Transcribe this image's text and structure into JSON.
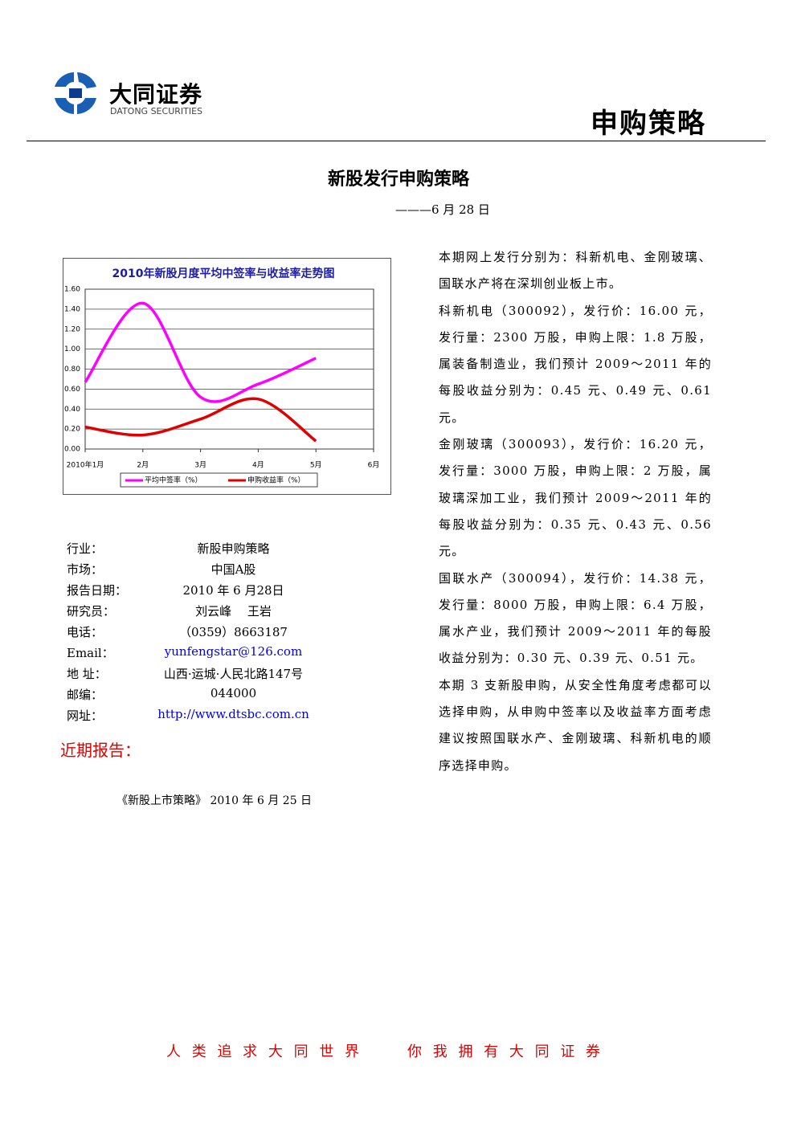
{
  "header": {
    "company": "大同证券",
    "company_en": "DATONG SECURITIES",
    "report_type": "申购策略"
  },
  "title": "新股发行申购策略",
  "date": "———6 月 28 日",
  "chart_data": {
    "type": "line",
    "title": "2010年新股月度平均中签率与收益率走势图",
    "categories": [
      "2010年1月",
      "2月",
      "3月",
      "4月",
      "5月",
      "6月"
    ],
    "series": [
      {
        "name": "平均中签率（%）",
        "color": "#ff00ff",
        "values": [
          0.67,
          1.46,
          0.52,
          0.65,
          0.91,
          null
        ]
      },
      {
        "name": "申购收益率（%）",
        "color": "#e00000",
        "values": [
          0.22,
          0.14,
          0.3,
          0.5,
          0.08,
          null
        ]
      }
    ],
    "ylim": [
      0,
      1.6
    ],
    "yticks": [
      {
        "value": 0,
        "label": "0.00"
      },
      {
        "value": 0.2,
        "label": "0.20"
      },
      {
        "value": 0.4,
        "label": "0.40"
      },
      {
        "value": 0.6,
        "label": "0.60"
      },
      {
        "value": 0.8,
        "label": "0.80"
      },
      {
        "value": 1,
        "label": "1.00"
      },
      {
        "value": 1.2,
        "label": "1.20"
      },
      {
        "value": 1.4,
        "label": "1.40"
      },
      {
        "value": 1.6,
        "label": "1.60"
      }
    ],
    "grid": true,
    "legend": "bottom"
  },
  "info": [
    [
      "行业：",
      "新股申购策略"
    ],
    [
      "市场：",
      "中国A股"
    ],
    [
      "报告日期：",
      "2010 年 6 月28日"
    ],
    [
      "研究员：",
      "刘云峰　 王岩"
    ],
    [
      "电话：",
      "（0359）8663187"
    ],
    [
      "Email：",
      "yunfengstar@126.com"
    ],
    [
      "地 址：",
      "山西·运城·人民北路147号"
    ],
    [
      "邮编：",
      "044000"
    ],
    [
      "网址：",
      "http://www.dtsbc.com.cn"
    ]
  ],
  "recent": {
    "heading": "近期报告：",
    "items": [
      "《新股上市策略》 2010 年 6 月 25 日"
    ]
  },
  "paragraphs": [
    "本期网上发行分别为：科新机电、金刚玻璃、国联水产将在深圳创业板上市。",
    "科新机电（300092），发行价：16.00 元，发行量：2300 万股，申购上限：1.8 万股，属装备制造业，我们预计 2009～2011 年的每股收益分别为：0.45 元、0.49 元、0.61 元。",
    "金刚玻璃（300093），发行价：16.20 元，发行量：3000 万股，申购上限：2 万股，属玻璃深加工业，我们预计 2009～2011 年的每股收益分别为：0.35 元、0.43 元、0.56 元。",
    "国联水产（300094），发行价：14.38 元，发行量：8000 万股，申购上限：6.4 万股，属水产业，我们预计 2009～2011 年的每股收益分别为：0.30 元、0.39 元、0.51 元。",
    "本期 3 支新股申购，从安全性角度考虑都可以选择申购，从申购中签率以及收益率方面考虑建议按照国联水产、金刚玻璃、科新机电的顺序选择申购。"
  ],
  "footer": [
    "人 类 追 求 大 同 世 界",
    "你 我 拥 有 大 同 证 券"
  ]
}
